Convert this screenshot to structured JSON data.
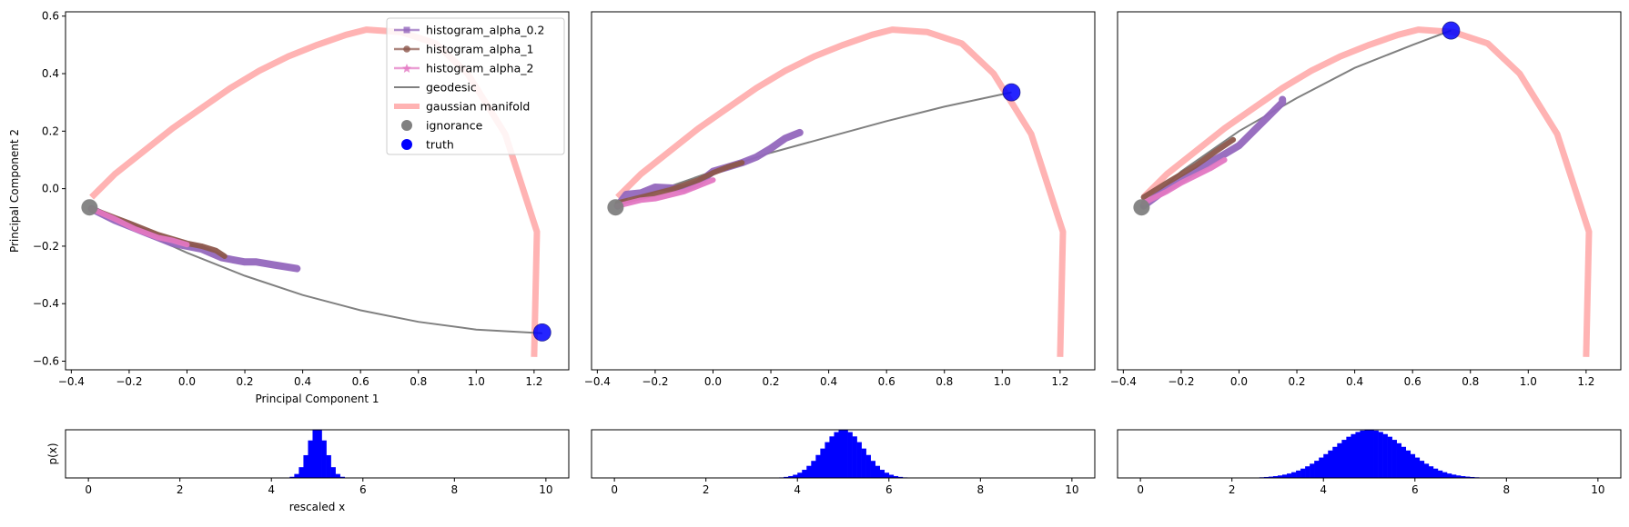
{
  "chart_data": [
    {
      "type": "line",
      "panel": 1,
      "xlabel": "Principal Component 1",
      "ylabel": "Principal Component 2",
      "xlim": [
        -0.42,
        1.32
      ],
      "ylim": [
        -0.63,
        0.615
      ],
      "xticks": [
        -0.4,
        -0.2,
        0.0,
        0.2,
        0.4,
        0.6,
        0.8,
        1.0,
        1.2
      ],
      "xtick_labels": [
        "−0.4",
        "−0.2",
        "0.0",
        "0.2",
        "0.4",
        "0.6",
        "0.8",
        "1.0",
        "1.2"
      ],
      "yticks": [
        -0.6,
        -0.4,
        -0.2,
        0.0,
        0.2,
        0.4,
        0.6
      ],
      "ytick_labels": [
        "−0.6",
        "−0.4",
        "−0.2",
        "0.0",
        "0.2",
        "0.4",
        "0.6"
      ],
      "grid": false,
      "legend_position": "top-right",
      "legend": [
        {
          "label": "histogram_alpha_0.2",
          "color": "#9467bd",
          "marker": "square"
        },
        {
          "label": "histogram_alpha_1",
          "color": "#8c564b",
          "marker": "circle"
        },
        {
          "label": "histogram_alpha_2",
          "color": "#e377c2",
          "marker": "star"
        },
        {
          "label": "geodesic",
          "color": "#808080",
          "marker": "line"
        },
        {
          "label": "gaussian manifold",
          "color": "#ffb3b3",
          "marker": "thick-line"
        },
        {
          "label": "ignorance",
          "color": "#808080",
          "marker": "dot"
        },
        {
          "label": "truth",
          "color": "#0000ff",
          "marker": "dot"
        }
      ],
      "manifold": {
        "color": "#ffb3b3",
        "x": [
          -0.33,
          -0.25,
          -0.15,
          -0.05,
          0.05,
          0.15,
          0.25,
          0.35,
          0.45,
          0.55,
          0.62,
          0.74,
          0.86,
          0.97,
          1.1,
          1.21,
          1.2
        ],
        "y": [
          -0.03,
          0.05,
          0.13,
          0.21,
          0.28,
          0.35,
          0.41,
          0.46,
          0.5,
          0.535,
          0.553,
          0.545,
          0.505,
          0.4,
          0.19,
          -0.15,
          -0.585
        ]
      },
      "geodesic": {
        "color": "#808080",
        "x": [
          -0.337,
          -0.2,
          0.0,
          0.2,
          0.4,
          0.6,
          0.8,
          1.0,
          1.228
        ],
        "y": [
          -0.065,
          -0.132,
          -0.223,
          -0.303,
          -0.37,
          -0.423,
          -0.463,
          -0.49,
          -0.503
        ]
      },
      "series": [
        {
          "name": "histogram_alpha_0.2",
          "color": "#9467bd",
          "x": [
            -0.33,
            -0.25,
            -0.15,
            -0.05,
            0.05,
            0.12,
            0.2,
            0.24,
            0.3,
            0.38
          ],
          "y": [
            -0.07,
            -0.11,
            -0.15,
            -0.19,
            -0.21,
            -0.24,
            -0.255,
            -0.255,
            -0.265,
            -0.278
          ]
        },
        {
          "name": "histogram_alpha_1",
          "color": "#8c564b",
          "x": [
            -0.33,
            -0.2,
            -0.1,
            0.0,
            0.05,
            0.1,
            0.13
          ],
          "y": [
            -0.07,
            -0.12,
            -0.16,
            -0.19,
            -0.2,
            -0.215,
            -0.235
          ]
        },
        {
          "name": "histogram_alpha_2",
          "color": "#e377c2",
          "x": [
            -0.33,
            -0.25,
            -0.18,
            -0.1,
            -0.05,
            0.0
          ],
          "y": [
            -0.07,
            -0.105,
            -0.14,
            -0.17,
            -0.18,
            -0.195
          ]
        }
      ],
      "ignorance": {
        "x": -0.337,
        "y": -0.065,
        "color": "#808080"
      },
      "truth": {
        "x": 1.228,
        "y": -0.5,
        "color": "#0000ff"
      }
    },
    {
      "type": "line",
      "panel": 2,
      "xlim": [
        -0.42,
        1.32
      ],
      "ylim": [
        -0.63,
        0.615
      ],
      "xticks": [
        -0.4,
        -0.2,
        0.0,
        0.2,
        0.4,
        0.6,
        0.8,
        1.0,
        1.2
      ],
      "xtick_labels": [
        "−0.4",
        "−0.2",
        "0.0",
        "0.2",
        "0.4",
        "0.6",
        "0.8",
        "1.0",
        "1.2"
      ],
      "manifold": {
        "color": "#ffb3b3",
        "x": [
          -0.33,
          -0.25,
          -0.15,
          -0.05,
          0.05,
          0.15,
          0.25,
          0.35,
          0.45,
          0.55,
          0.62,
          0.74,
          0.86,
          0.97,
          1.1,
          1.21,
          1.2
        ],
        "y": [
          -0.03,
          0.05,
          0.13,
          0.21,
          0.28,
          0.35,
          0.41,
          0.46,
          0.5,
          0.535,
          0.553,
          0.545,
          0.505,
          0.4,
          0.19,
          -0.15,
          -0.585
        ]
      },
      "geodesic": {
        "color": "#808080",
        "x": [
          -0.337,
          -0.2,
          0.0,
          0.2,
          0.4,
          0.6,
          0.8,
          1.032
        ],
        "y": [
          -0.065,
          -0.01,
          0.06,
          0.125,
          0.18,
          0.235,
          0.285,
          0.335
        ]
      },
      "series": [
        {
          "name": "histogram_alpha_0.2",
          "color": "#9467bd",
          "x": [
            -0.33,
            -0.3,
            -0.25,
            -0.2,
            -0.1,
            -0.05,
            0.0,
            0.05,
            0.1,
            0.15,
            0.2,
            0.25,
            0.3
          ],
          "y": [
            -0.06,
            -0.02,
            -0.015,
            0.005,
            0.0,
            0.02,
            0.06,
            0.075,
            0.09,
            0.11,
            0.14,
            0.175,
            0.195
          ]
        },
        {
          "name": "histogram_alpha_1",
          "color": "#8c564b",
          "x": [
            -0.33,
            -0.25,
            -0.15,
            -0.05,
            0.0,
            0.05,
            0.1
          ],
          "y": [
            -0.05,
            -0.03,
            -0.005,
            0.03,
            0.055,
            0.075,
            0.09
          ]
        },
        {
          "name": "histogram_alpha_2",
          "color": "#e377c2",
          "x": [
            -0.33,
            -0.25,
            -0.2,
            -0.1,
            -0.05,
            0.0
          ],
          "y": [
            -0.06,
            -0.04,
            -0.035,
            -0.01,
            0.01,
            0.03
          ]
        }
      ],
      "ignorance": {
        "x": -0.337,
        "y": -0.065,
        "color": "#808080"
      },
      "truth": {
        "x": 1.032,
        "y": 0.335,
        "color": "#0000ff"
      }
    },
    {
      "type": "line",
      "panel": 3,
      "xlim": [
        -0.42,
        1.32
      ],
      "ylim": [
        -0.63,
        0.615
      ],
      "xticks": [
        -0.4,
        -0.2,
        0.0,
        0.2,
        0.4,
        0.6,
        0.8,
        1.0,
        1.2
      ],
      "xtick_labels": [
        "−0.4",
        "−0.2",
        "0.0",
        "0.2",
        "0.4",
        "0.6",
        "0.8",
        "1.0",
        "1.2"
      ],
      "manifold": {
        "color": "#ffb3b3",
        "x": [
          -0.33,
          -0.25,
          -0.15,
          -0.05,
          0.05,
          0.15,
          0.25,
          0.35,
          0.45,
          0.55,
          0.62,
          0.74,
          0.86,
          0.97,
          1.1,
          1.21,
          1.2
        ],
        "y": [
          -0.03,
          0.05,
          0.13,
          0.21,
          0.28,
          0.35,
          0.41,
          0.46,
          0.5,
          0.535,
          0.553,
          0.545,
          0.505,
          0.4,
          0.19,
          -0.15,
          -0.585
        ]
      },
      "geodesic": {
        "color": "#808080",
        "x": [
          -0.337,
          -0.2,
          0.0,
          0.2,
          0.4,
          0.6,
          0.733
        ],
        "y": [
          -0.065,
          0.06,
          0.2,
          0.315,
          0.42,
          0.5,
          0.55
        ]
      },
      "series": [
        {
          "name": "histogram_alpha_0.2",
          "color": "#9467bd",
          "x": [
            -0.33,
            -0.25,
            -0.2,
            -0.12,
            -0.05,
            0.0,
            0.05,
            0.1,
            0.15,
            0.15
          ],
          "y": [
            -0.06,
            0.0,
            0.03,
            0.08,
            0.12,
            0.15,
            0.2,
            0.25,
            0.3,
            0.31
          ]
        },
        {
          "name": "histogram_alpha_1",
          "color": "#8c564b",
          "x": [
            -0.33,
            -0.25,
            -0.15,
            -0.08,
            -0.02
          ],
          "y": [
            -0.03,
            0.02,
            0.08,
            0.13,
            0.17
          ]
        },
        {
          "name": "histogram_alpha_2",
          "color": "#e377c2",
          "x": [
            -0.33,
            -0.25,
            -0.2,
            -0.1,
            -0.05
          ],
          "y": [
            -0.05,
            -0.01,
            0.02,
            0.07,
            0.1
          ]
        }
      ],
      "ignorance": {
        "x": -0.337,
        "y": -0.065,
        "color": "#808080"
      },
      "truth": {
        "x": 0.733,
        "y": 0.55,
        "color": "#0000ff"
      }
    },
    {
      "type": "bar",
      "panel": 4,
      "xlabel": "rescaled x",
      "ylabel": "p(x)",
      "xlim": [
        -0.5,
        10.5
      ],
      "xticks": [
        0,
        2,
        4,
        6,
        8,
        10
      ],
      "color": "#0000ff",
      "distribution": {
        "center": 5.0,
        "sigma": 0.2
      },
      "bin_width": 0.1
    },
    {
      "type": "bar",
      "panel": 5,
      "xlim": [
        -0.5,
        10.5
      ],
      "xticks": [
        0,
        2,
        4,
        6,
        8,
        10
      ],
      "color": "#0000ff",
      "distribution": {
        "center": 5.0,
        "sigma": 0.45
      },
      "bin_width": 0.1
    },
    {
      "type": "bar",
      "panel": 6,
      "xlim": [
        -0.5,
        10.5
      ],
      "xticks": [
        0,
        2,
        4,
        6,
        8,
        10
      ],
      "color": "#0000ff",
      "distribution": {
        "center": 5.0,
        "sigma": 0.8
      },
      "bin_width": 0.1
    }
  ]
}
